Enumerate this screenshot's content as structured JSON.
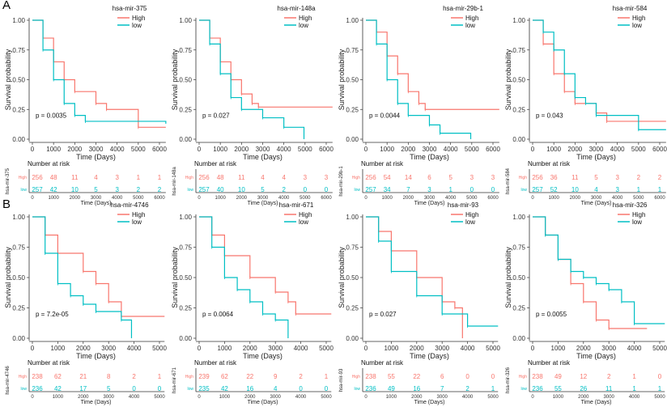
{
  "panel_labels": [
    "A",
    "B"
  ],
  "colors": {
    "High": "#F8766D",
    "low": "#00BFC4"
  },
  "chart_data": [
    {
      "type": "line",
      "group": "A",
      "title": "hsa-mir-375",
      "xlabel": "Time (Days)",
      "ylabel": "Survival probability",
      "xticks": [
        0,
        1000,
        2000,
        3000,
        4000,
        5000,
        6000
      ],
      "xlim": [
        0,
        6300
      ],
      "yticks": [
        "0.00",
        "0.25",
        "0.50",
        "0.75",
        "1.00"
      ],
      "ylim": [
        0,
        1
      ],
      "pvalue": "p = 0.0035",
      "series": [
        {
          "name": "High",
          "values": [
            [
              0,
              1
            ],
            [
              500,
              0.85
            ],
            [
              1000,
              0.65
            ],
            [
              1500,
              0.5
            ],
            [
              2000,
              0.4
            ],
            [
              3000,
              0.3
            ],
            [
              3500,
              0.25
            ],
            [
              5000,
              0.1
            ],
            [
              6300,
              0.1
            ]
          ]
        },
        {
          "name": "low",
          "values": [
            [
              0,
              1
            ],
            [
              500,
              0.75
            ],
            [
              1000,
              0.5
            ],
            [
              1500,
              0.3
            ],
            [
              2000,
              0.2
            ],
            [
              2500,
              0.15
            ],
            [
              6300,
              0.13
            ]
          ]
        }
      ],
      "risk_title": "Number at risk",
      "risk": {
        "High": [
          256,
          48,
          11,
          4,
          3,
          1,
          1
        ],
        "low": [
          257,
          42,
          10,
          5,
          3,
          2,
          2
        ]
      }
    },
    {
      "type": "line",
      "group": "A",
      "title": "hsa-mir-148a",
      "xlabel": "Time (Days)",
      "ylabel": "Survival probability",
      "xticks": [
        0,
        1000,
        2000,
        3000,
        4000,
        5000,
        6000
      ],
      "xlim": [
        0,
        6300
      ],
      "yticks": [
        "0.00",
        "0.25",
        "0.50",
        "0.75",
        "1.00"
      ],
      "ylim": [
        0,
        1
      ],
      "pvalue": "p = 0.027",
      "series": [
        {
          "name": "High",
          "values": [
            [
              0,
              1
            ],
            [
              500,
              0.85
            ],
            [
              1000,
              0.65
            ],
            [
              1500,
              0.5
            ],
            [
              2000,
              0.38
            ],
            [
              2500,
              0.3
            ],
            [
              2800,
              0.27
            ],
            [
              6300,
              0.27
            ]
          ]
        },
        {
          "name": "low",
          "values": [
            [
              0,
              1
            ],
            [
              500,
              0.8
            ],
            [
              1000,
              0.55
            ],
            [
              1500,
              0.35
            ],
            [
              2000,
              0.25
            ],
            [
              3000,
              0.18
            ],
            [
              4000,
              0.1
            ],
            [
              4950,
              0.0
            ]
          ]
        }
      ],
      "risk_title": "Number at risk",
      "risk": {
        "High": [
          256,
          48,
          11,
          4,
          4,
          3,
          3
        ],
        "low": [
          257,
          40,
          10,
          5,
          2,
          0,
          0
        ]
      }
    },
    {
      "type": "line",
      "group": "A",
      "title": "hsa-mir-29b-1",
      "xlabel": "Time (Days)",
      "ylabel": "Survival probability",
      "xticks": [
        0,
        1000,
        2000,
        3000,
        4000,
        5000,
        6000
      ],
      "xlim": [
        0,
        6300
      ],
      "yticks": [
        "0.00",
        "0.25",
        "0.50",
        "0.75",
        "1.00"
      ],
      "ylim": [
        0,
        1
      ],
      "pvalue": "p = 0.0044",
      "series": [
        {
          "name": "High",
          "values": [
            [
              0,
              1
            ],
            [
              500,
              0.9
            ],
            [
              1000,
              0.7
            ],
            [
              1500,
              0.55
            ],
            [
              2000,
              0.4
            ],
            [
              2500,
              0.3
            ],
            [
              2800,
              0.25
            ],
            [
              6300,
              0.25
            ]
          ]
        },
        {
          "name": "low",
          "values": [
            [
              0,
              1
            ],
            [
              500,
              0.8
            ],
            [
              1000,
              0.5
            ],
            [
              1500,
              0.3
            ],
            [
              2000,
              0.2
            ],
            [
              3000,
              0.12
            ],
            [
              3500,
              0.05
            ],
            [
              4950,
              0.0
            ]
          ]
        }
      ],
      "risk_title": "Number at risk",
      "risk": {
        "High": [
          256,
          54,
          14,
          6,
          5,
          3,
          3
        ],
        "low": [
          257,
          34,
          7,
          3,
          1,
          0,
          0
        ]
      }
    },
    {
      "type": "line",
      "group": "A",
      "title": "hsa-mir-584",
      "xlabel": "Time (Days)",
      "ylabel": "Survival probability",
      "xticks": [
        0,
        1000,
        2000,
        3000,
        4000,
        5000,
        6000
      ],
      "xlim": [
        0,
        6300
      ],
      "yticks": [
        "0.00",
        "0.25",
        "0.50",
        "0.75",
        "1.00"
      ],
      "ylim": [
        0,
        1
      ],
      "pvalue": "p = 0.043",
      "series": [
        {
          "name": "High",
          "values": [
            [
              0,
              1
            ],
            [
              500,
              0.8
            ],
            [
              1000,
              0.55
            ],
            [
              1500,
              0.4
            ],
            [
              2000,
              0.3
            ],
            [
              3000,
              0.22
            ],
            [
              3500,
              0.15
            ],
            [
              6300,
              0.15
            ]
          ]
        },
        {
          "name": "low",
          "values": [
            [
              0,
              1
            ],
            [
              500,
              0.9
            ],
            [
              1000,
              0.75
            ],
            [
              1500,
              0.55
            ],
            [
              2000,
              0.35
            ],
            [
              2500,
              0.3
            ],
            [
              3000,
              0.2
            ],
            [
              5000,
              0.08
            ],
            [
              6300,
              0.08
            ]
          ]
        }
      ],
      "risk_title": "Number at risk",
      "risk": {
        "High": [
          256,
          36,
          11,
          5,
          3,
          2,
          2
        ],
        "low": [
          257,
          52,
          10,
          4,
          3,
          1,
          1
        ]
      }
    },
    {
      "type": "line",
      "group": "B",
      "title": "hsa-mir-4746",
      "xlabel": "Time (Days)",
      "ylabel": "Survival probability",
      "xticks": [
        0,
        1000,
        2000,
        3000,
        4000,
        5000
      ],
      "xlim": [
        0,
        5200
      ],
      "yticks": [
        "0.00",
        "0.25",
        "0.50",
        "0.75",
        "1.00"
      ],
      "ylim": [
        0,
        1
      ],
      "pvalue": "p = 7.2e-05",
      "series": [
        {
          "name": "High",
          "values": [
            [
              0,
              1
            ],
            [
              500,
              0.85
            ],
            [
              1000,
              0.7
            ],
            [
              2000,
              0.55
            ],
            [
              2500,
              0.45
            ],
            [
              3000,
              0.3
            ],
            [
              3500,
              0.18
            ],
            [
              5200,
              0.18
            ]
          ]
        },
        {
          "name": "low",
          "values": [
            [
              0,
              1
            ],
            [
              500,
              0.7
            ],
            [
              1000,
              0.45
            ],
            [
              1500,
              0.35
            ],
            [
              2000,
              0.28
            ],
            [
              2500,
              0.22
            ],
            [
              3500,
              0.15
            ],
            [
              3900,
              0.0
            ]
          ]
        }
      ],
      "risk_title": "Number at risk",
      "risk": {
        "High": [
          238,
          62,
          21,
          8,
          2,
          1
        ],
        "low": [
          236,
          42,
          17,
          5,
          0,
          0
        ]
      }
    },
    {
      "type": "line",
      "group": "B",
      "title": "hsa-mir-671",
      "xlabel": "Time (Days)",
      "ylabel": "Survival probability",
      "xticks": [
        0,
        1000,
        2000,
        3000,
        4000,
        5000
      ],
      "xlim": [
        0,
        5200
      ],
      "yticks": [
        "0.00",
        "0.25",
        "0.50",
        "0.75",
        "1.00"
      ],
      "ylim": [
        0,
        1
      ],
      "pvalue": "p = 0.0064",
      "series": [
        {
          "name": "High",
          "values": [
            [
              0,
              1
            ],
            [
              500,
              0.85
            ],
            [
              1000,
              0.68
            ],
            [
              2000,
              0.5
            ],
            [
              3000,
              0.38
            ],
            [
              3500,
              0.3
            ],
            [
              3800,
              0.2
            ],
            [
              5200,
              0.2
            ]
          ]
        },
        {
          "name": "low",
          "values": [
            [
              0,
              1
            ],
            [
              500,
              0.75
            ],
            [
              1000,
              0.5
            ],
            [
              1500,
              0.4
            ],
            [
              2000,
              0.3
            ],
            [
              2500,
              0.2
            ],
            [
              3000,
              0.15
            ],
            [
              3500,
              0.0
            ]
          ]
        }
      ],
      "risk_title": "Number at risk",
      "risk": {
        "High": [
          239,
          62,
          22,
          9,
          2,
          1
        ],
        "low": [
          235,
          42,
          16,
          4,
          0,
          0
        ]
      }
    },
    {
      "type": "line",
      "group": "B",
      "title": "hsa-mir-93",
      "xlabel": "Time (Days)",
      "ylabel": "Survival probability",
      "xticks": [
        0,
        1000,
        2000,
        3000,
        4000,
        5000
      ],
      "xlim": [
        0,
        5200
      ],
      "yticks": [
        "0.00",
        "0.25",
        "0.50",
        "0.75",
        "1.00"
      ],
      "ylim": [
        0,
        1
      ],
      "pvalue": "p = 0.027",
      "series": [
        {
          "name": "High",
          "values": [
            [
              0,
              1
            ],
            [
              500,
              0.88
            ],
            [
              1000,
              0.72
            ],
            [
              2000,
              0.5
            ],
            [
              3000,
              0.3
            ],
            [
              3500,
              0.25
            ],
            [
              3800,
              0.0
            ]
          ]
        },
        {
          "name": "low",
          "values": [
            [
              0,
              1
            ],
            [
              500,
              0.8
            ],
            [
              1000,
              0.55
            ],
            [
              2000,
              0.35
            ],
            [
              3000,
              0.2
            ],
            [
              4000,
              0.1
            ],
            [
              5200,
              0.1
            ]
          ]
        }
      ],
      "risk_title": "Number at risk",
      "risk": {
        "High": [
          238,
          55,
          22,
          6,
          0,
          0
        ],
        "low": [
          236,
          49,
          16,
          7,
          2,
          1
        ]
      }
    },
    {
      "type": "line",
      "group": "B",
      "title": "hsa-mir-326",
      "xlabel": "Time (Days)",
      "ylabel": "Survival probability",
      "xticks": [
        0,
        1000,
        2000,
        3000,
        4000,
        5000
      ],
      "xlim": [
        0,
        5200
      ],
      "yticks": [
        "0.00",
        "0.25",
        "0.50",
        "0.75",
        "1.00"
      ],
      "ylim": [
        0,
        1
      ],
      "pvalue": "p = 0.0055",
      "series": [
        {
          "name": "High",
          "values": [
            [
              0,
              1
            ],
            [
              500,
              0.85
            ],
            [
              1000,
              0.65
            ],
            [
              1500,
              0.45
            ],
            [
              2000,
              0.3
            ],
            [
              2500,
              0.15
            ],
            [
              3000,
              0.08
            ],
            [
              4500,
              0.08
            ]
          ]
        },
        {
          "name": "low",
          "values": [
            [
              0,
              1
            ],
            [
              500,
              0.85
            ],
            [
              1000,
              0.65
            ],
            [
              1500,
              0.55
            ],
            [
              2000,
              0.5
            ],
            [
              2500,
              0.45
            ],
            [
              3000,
              0.4
            ],
            [
              3500,
              0.3
            ],
            [
              4000,
              0.12
            ],
            [
              5200,
              0.12
            ]
          ]
        }
      ],
      "risk_title": "Number at risk",
      "risk": {
        "High": [
          238,
          49,
          12,
          2,
          1,
          0
        ],
        "low": [
          236,
          55,
          26,
          11,
          1,
          1
        ]
      }
    }
  ]
}
